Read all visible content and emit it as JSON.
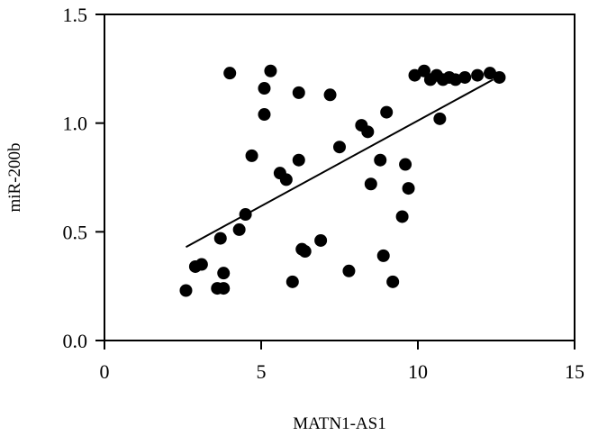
{
  "chart_data": {
    "type": "scatter",
    "xlabel": "MATN1-AS1",
    "ylabel": "miR-200b",
    "xlim": [
      0,
      15
    ],
    "ylim": [
      0,
      1.5
    ],
    "x_ticks": [
      0,
      5,
      10,
      15
    ],
    "y_ticks": [
      0.0,
      0.5,
      1.0,
      1.5
    ],
    "x_tick_labels": [
      "0",
      "5",
      "10",
      "15"
    ],
    "y_tick_labels": [
      "0.0",
      "0.5",
      "1.0",
      "1.5"
    ],
    "grid": false,
    "colors": {
      "points": "#000000",
      "fit_line": "#000000",
      "axes": "#000000"
    },
    "points": [
      {
        "x": 2.6,
        "y": 0.23
      },
      {
        "x": 2.9,
        "y": 0.34
      },
      {
        "x": 3.1,
        "y": 0.35
      },
      {
        "x": 3.6,
        "y": 0.24
      },
      {
        "x": 3.8,
        "y": 0.24
      },
      {
        "x": 3.8,
        "y": 0.31
      },
      {
        "x": 3.7,
        "y": 0.47
      },
      {
        "x": 4.3,
        "y": 0.51
      },
      {
        "x": 4.5,
        "y": 0.58
      },
      {
        "x": 4.0,
        "y": 1.23
      },
      {
        "x": 4.7,
        "y": 0.85
      },
      {
        "x": 5.1,
        "y": 1.04
      },
      {
        "x": 5.1,
        "y": 1.16
      },
      {
        "x": 5.3,
        "y": 1.24
      },
      {
        "x": 5.6,
        "y": 0.77
      },
      {
        "x": 5.8,
        "y": 0.74
      },
      {
        "x": 6.0,
        "y": 0.27
      },
      {
        "x": 6.2,
        "y": 0.83
      },
      {
        "x": 6.2,
        "y": 1.14
      },
      {
        "x": 6.3,
        "y": 0.42
      },
      {
        "x": 6.4,
        "y": 0.41
      },
      {
        "x": 6.9,
        "y": 0.46
      },
      {
        "x": 7.2,
        "y": 1.13
      },
      {
        "x": 7.5,
        "y": 0.89
      },
      {
        "x": 7.8,
        "y": 0.32
      },
      {
        "x": 8.2,
        "y": 0.99
      },
      {
        "x": 8.4,
        "y": 0.96
      },
      {
        "x": 8.5,
        "y": 0.72
      },
      {
        "x": 8.8,
        "y": 0.83
      },
      {
        "x": 8.9,
        "y": 0.39
      },
      {
        "x": 9.0,
        "y": 1.05
      },
      {
        "x": 9.2,
        "y": 0.27
      },
      {
        "x": 9.5,
        "y": 0.57
      },
      {
        "x": 9.6,
        "y": 0.81
      },
      {
        "x": 9.7,
        "y": 0.7
      },
      {
        "x": 9.9,
        "y": 1.22
      },
      {
        "x": 10.2,
        "y": 1.24
      },
      {
        "x": 10.4,
        "y": 1.2
      },
      {
        "x": 10.6,
        "y": 1.22
      },
      {
        "x": 10.7,
        "y": 1.02
      },
      {
        "x": 10.8,
        "y": 1.2
      },
      {
        "x": 11.0,
        "y": 1.21
      },
      {
        "x": 11.2,
        "y": 1.2
      },
      {
        "x": 11.5,
        "y": 1.21
      },
      {
        "x": 11.9,
        "y": 1.22
      },
      {
        "x": 12.3,
        "y": 1.23
      },
      {
        "x": 12.6,
        "y": 1.21
      }
    ],
    "fit_line": {
      "x": [
        2.6,
        12.4
      ],
      "y": [
        0.43,
        1.2
      ]
    }
  }
}
